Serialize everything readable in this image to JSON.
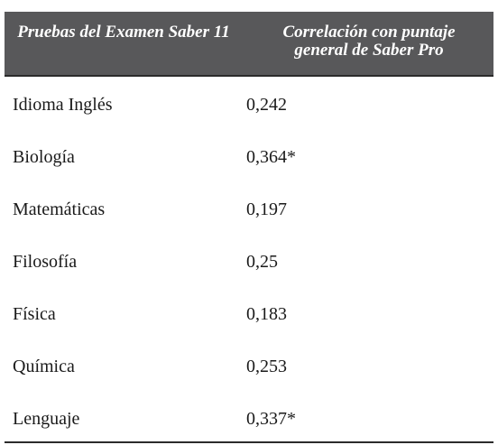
{
  "table": {
    "headers": [
      "Pruebas del Examen Saber 11",
      "Correlación con puntaje general de Saber Pro"
    ],
    "rows": [
      {
        "test": "Idioma Inglés",
        "correlation": "0,242"
      },
      {
        "test": "Biología",
        "correlation": "0,364*"
      },
      {
        "test": "Matemáticas",
        "correlation": "0,197"
      },
      {
        "test": "Filosofía",
        "correlation": "0,25"
      },
      {
        "test": "Física",
        "correlation": "0,183"
      },
      {
        "test": "Química",
        "correlation": "0,253"
      },
      {
        "test": "Lenguaje",
        "correlation": "0,337*"
      }
    ]
  }
}
